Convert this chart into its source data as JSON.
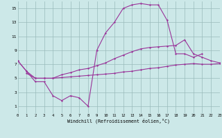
{
  "bg_color": "#cce8e8",
  "line_color": "#993399",
  "grid_color": "#99bbbb",
  "xlim": [
    0,
    23
  ],
  "ylim": [
    0,
    16
  ],
  "xticks": [
    0,
    1,
    2,
    3,
    4,
    5,
    6,
    7,
    8,
    9,
    10,
    11,
    12,
    13,
    14,
    15,
    16,
    17,
    18,
    19,
    20,
    21,
    22,
    23
  ],
  "yticks": [
    1,
    3,
    5,
    7,
    9,
    11,
    13,
    15
  ],
  "xlabel": "Windchill (Refroidissement éolien,°C)",
  "line1_x": [
    0,
    1,
    2,
    3,
    4,
    5,
    6,
    7,
    8,
    9,
    10,
    11,
    12,
    13,
    14,
    15,
    16,
    17,
    18,
    19,
    20,
    21
  ],
  "line1_y": [
    7.5,
    6.0,
    4.5,
    4.5,
    2.5,
    1.8,
    2.5,
    2.2,
    1.0,
    9.0,
    11.5,
    13.0,
    15.0,
    15.5,
    15.7,
    15.5,
    15.5,
    13.3,
    8.5,
    8.5,
    8.0,
    8.5
  ],
  "line2_x": [
    1,
    2,
    3,
    4,
    5,
    6,
    7,
    8,
    9,
    10,
    11,
    12,
    13,
    14,
    15,
    16,
    17,
    18,
    19,
    20,
    21,
    22,
    23
  ],
  "line2_y": [
    5.7,
    5.0,
    5.0,
    5.0,
    5.1,
    5.2,
    5.3,
    5.4,
    5.5,
    5.6,
    5.7,
    5.9,
    6.0,
    6.2,
    6.4,
    6.5,
    6.7,
    6.9,
    7.0,
    7.1,
    7.0,
    7.0,
    7.1
  ],
  "line3_x": [
    0,
    1,
    2,
    3,
    4,
    5,
    6,
    7,
    8,
    9,
    10,
    11,
    12,
    13,
    14,
    15,
    16,
    17,
    18,
    19,
    20,
    21,
    22,
    23
  ],
  "line3_y": [
    7.5,
    6.0,
    5.0,
    5.0,
    5.0,
    5.5,
    5.8,
    6.2,
    6.4,
    6.8,
    7.2,
    7.8,
    8.3,
    8.8,
    9.2,
    9.4,
    9.5,
    9.6,
    9.7,
    10.5,
    8.5,
    8.0,
    7.5,
    7.2
  ]
}
